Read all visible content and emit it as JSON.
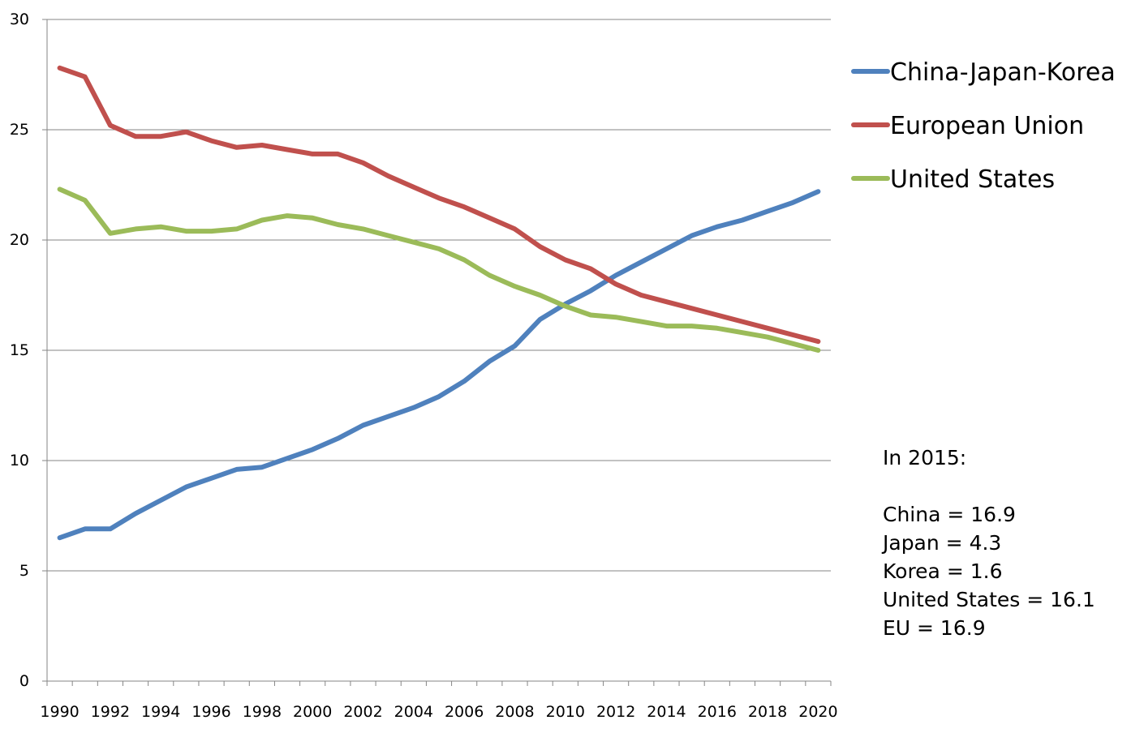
{
  "chart_data": {
    "type": "line",
    "title": "",
    "xlabel": "",
    "ylabel": "",
    "ylim": [
      0,
      30
    ],
    "y_ticks": [
      0,
      5,
      10,
      15,
      20,
      25,
      30
    ],
    "x_tick_labels": [
      "1990",
      "1992",
      "1994",
      "1996",
      "1998",
      "2000",
      "2002",
      "2004",
      "2006",
      "2008",
      "2010",
      "2012",
      "2014",
      "2016",
      "2018",
      "2020"
    ],
    "grid": "horizontal",
    "legend_position": "right",
    "x": [
      1990,
      1991,
      1992,
      1993,
      1994,
      1995,
      1996,
      1997,
      1998,
      1999,
      2000,
      2001,
      2002,
      2003,
      2004,
      2005,
      2006,
      2007,
      2008,
      2009,
      2010,
      2011,
      2012,
      2013,
      2014,
      2015,
      2016,
      2017,
      2018,
      2019,
      2020
    ],
    "series": [
      {
        "name": "China-Japan-Korea",
        "color": "#4f81bd",
        "values": [
          6.5,
          6.9,
          6.9,
          7.6,
          8.2,
          8.8,
          9.2,
          9.6,
          9.7,
          10.1,
          10.5,
          11.0,
          11.6,
          12.0,
          12.4,
          12.9,
          13.6,
          14.5,
          15.2,
          16.4,
          17.1,
          17.7,
          18.4,
          19.0,
          19.6,
          20.2,
          20.6,
          20.9,
          21.3,
          21.7,
          22.2
        ]
      },
      {
        "name": "European Union",
        "color": "#c0504d",
        "values": [
          27.8,
          27.4,
          25.2,
          24.7,
          24.7,
          24.9,
          24.5,
          24.2,
          24.3,
          24.1,
          23.9,
          23.9,
          23.5,
          22.9,
          22.4,
          21.9,
          21.5,
          21.0,
          20.5,
          19.7,
          19.1,
          18.7,
          18.0,
          17.5,
          17.2,
          16.9,
          16.6,
          16.3,
          16.0,
          15.7,
          15.4
        ]
      },
      {
        "name": "United States",
        "color": "#9bbb59",
        "values": [
          22.3,
          21.8,
          20.3,
          20.5,
          20.6,
          20.4,
          20.4,
          20.5,
          20.9,
          21.1,
          21.0,
          20.7,
          20.5,
          20.2,
          19.9,
          19.6,
          19.1,
          18.4,
          17.9,
          17.5,
          17.0,
          16.6,
          16.5,
          16.3,
          16.1,
          16.1,
          16.0,
          15.8,
          15.6,
          15.3,
          15.0
        ]
      }
    ],
    "annotation": {
      "heading": "In 2015:",
      "lines": [
        "China = 16.9",
        "Japan = 4.3",
        "Korea = 1.6",
        "United States = 16.1",
        "EU = 16.9"
      ]
    }
  }
}
